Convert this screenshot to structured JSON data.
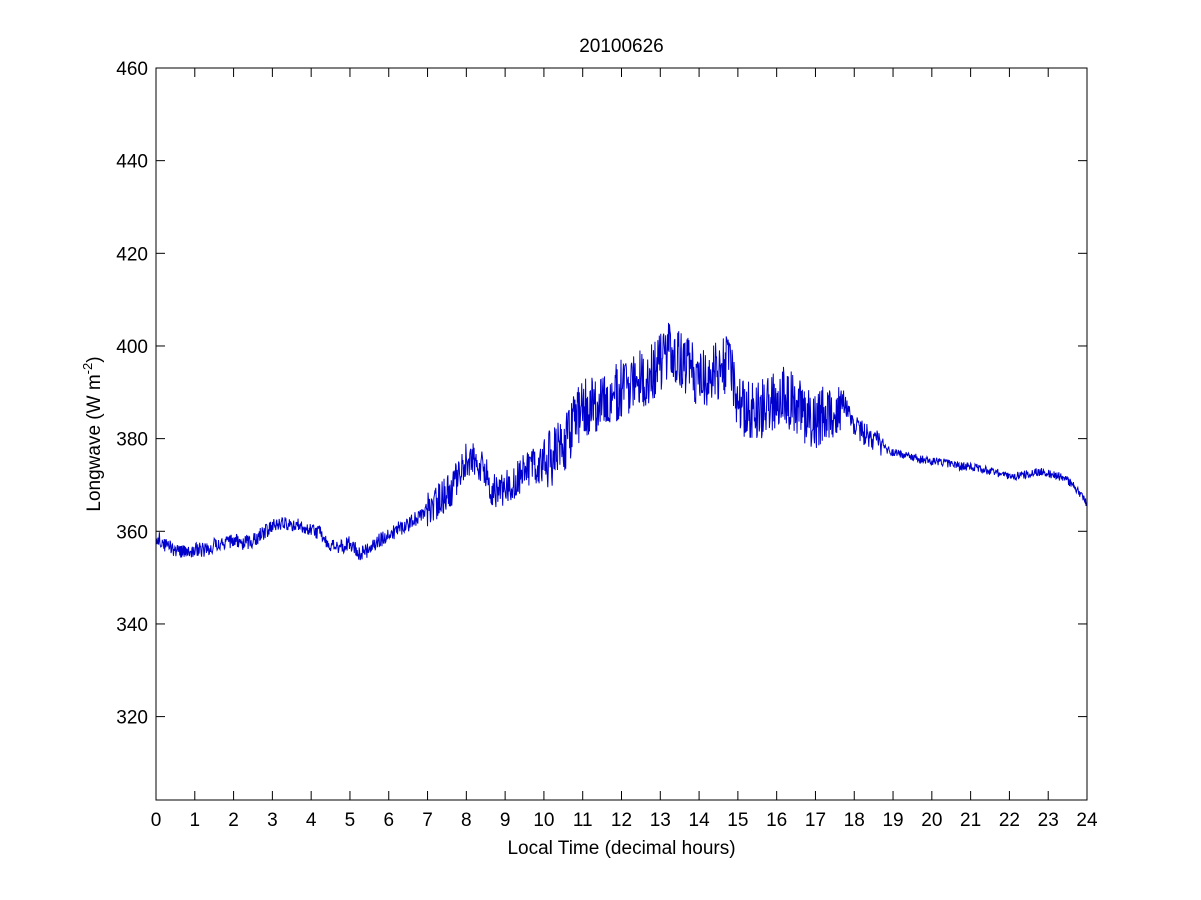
{
  "chart_data": {
    "type": "line",
    "title": "20100626",
    "xlabel": "Local Time (decimal hours)",
    "ylabel": {
      "main": "Longwave (W m",
      "superscript": "-2",
      "close": ")"
    },
    "xlim": [
      0,
      24
    ],
    "ylim": [
      302,
      460
    ],
    "xticks": [
      "0",
      "1",
      "2",
      "3",
      "4",
      "5",
      "6",
      "7",
      "8",
      "9",
      "10",
      "11",
      "12",
      "13",
      "14",
      "15",
      "16",
      "17",
      "18",
      "19",
      "20",
      "21",
      "22",
      "23",
      "24"
    ],
    "yticks": [
      "320",
      "340",
      "360",
      "380",
      "400",
      "420",
      "440",
      "460"
    ],
    "grid": false,
    "line_color": "#0000cc",
    "series": [
      {
        "x": [
          0.0,
          0.25,
          0.5,
          0.75,
          1.0,
          1.25,
          1.5,
          1.75,
          2.0,
          2.25,
          2.5,
          2.75,
          3.0,
          3.25,
          3.5,
          3.75,
          4.0,
          4.25,
          4.5,
          4.75,
          5.0,
          5.25,
          5.5,
          5.75,
          6.0,
          6.25,
          6.5,
          6.75,
          7.0,
          7.25,
          7.5,
          7.75,
          8.0,
          8.25,
          8.5,
          8.75,
          9.0,
          9.25,
          9.5,
          9.75,
          10.0,
          10.25,
          10.5,
          10.75,
          11.0,
          11.25,
          11.5,
          11.75,
          12.0,
          12.25,
          12.5,
          12.75,
          13.0,
          13.25,
          13.5,
          13.75,
          14.0,
          14.25,
          14.5,
          14.75,
          15.0,
          15.25,
          15.5,
          15.75,
          16.0,
          16.25,
          16.5,
          16.75,
          17.0,
          17.25,
          17.5,
          17.75,
          18.0,
          18.25,
          18.5,
          18.75,
          19.0,
          19.25,
          19.5,
          19.75,
          20.0,
          20.25,
          20.5,
          20.75,
          21.0,
          21.25,
          21.5,
          21.75,
          22.0,
          22.25,
          22.5,
          22.75,
          23.0,
          23.25,
          23.5,
          23.75,
          24.0
        ],
        "values": [
          359,
          357,
          356,
          355.5,
          356,
          356,
          357,
          357.5,
          358,
          357.5,
          358,
          359.5,
          361,
          362,
          361.5,
          361,
          360.5,
          359.5,
          357,
          356.5,
          357.5,
          355,
          356,
          358,
          359,
          360.5,
          361.5,
          363,
          365,
          366.5,
          368,
          371,
          376,
          376,
          372,
          368,
          369,
          371,
          373,
          374,
          374.5,
          376,
          379,
          383,
          386,
          388,
          388,
          389,
          391,
          392,
          393,
          394,
          396,
          399,
          397,
          395,
          393,
          393,
          395,
          396,
          388,
          386,
          386,
          387,
          389,
          389,
          387,
          385,
          384,
          385,
          386,
          387,
          383,
          381,
          380,
          378,
          377,
          376.5,
          376,
          375.5,
          375,
          375,
          374.5,
          374,
          374,
          373.5,
          373,
          372.5,
          372,
          372,
          372.5,
          373,
          372.5,
          372,
          371,
          369,
          366
        ]
      }
    ]
  }
}
